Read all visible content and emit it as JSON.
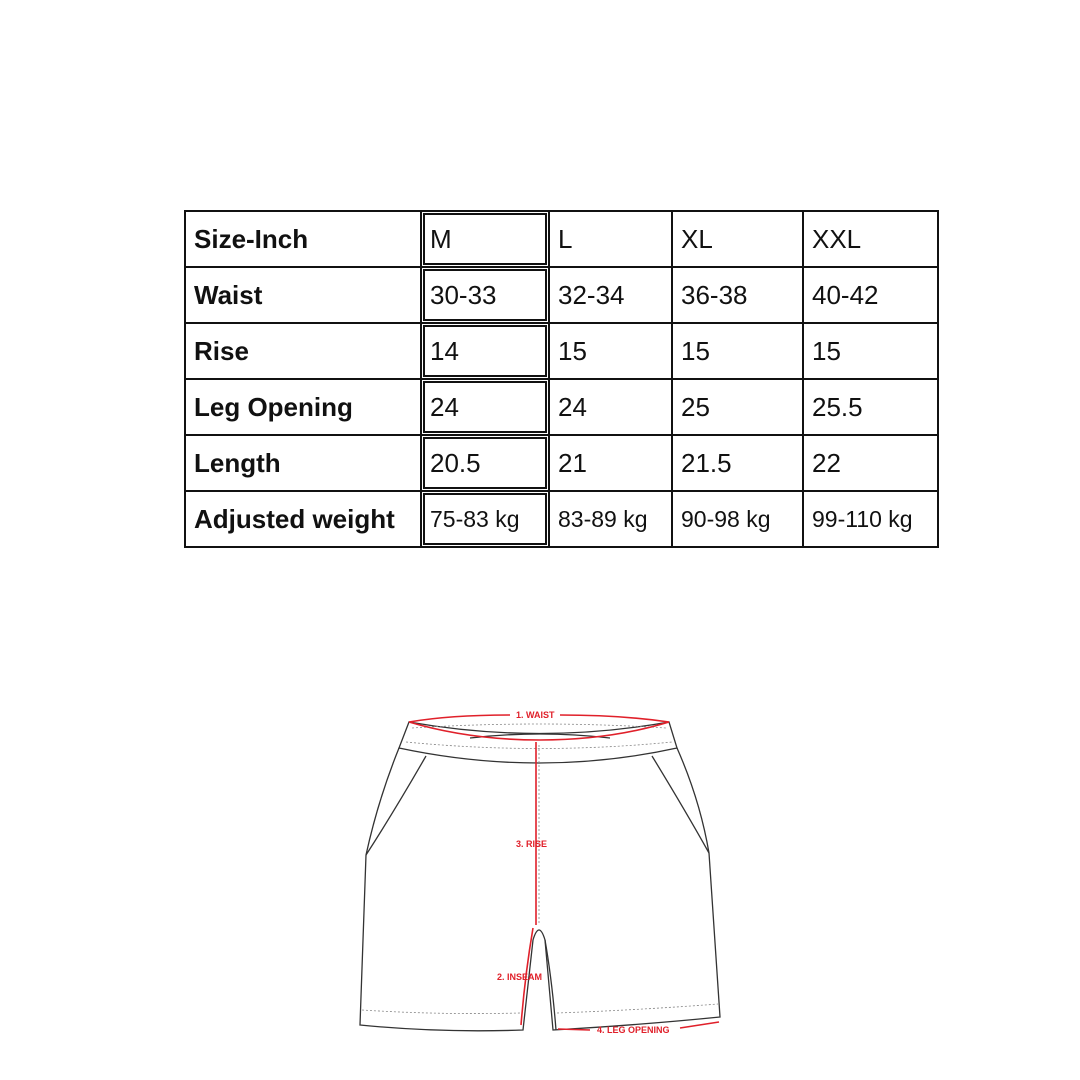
{
  "size_chart": {
    "header": [
      "Size-Inch",
      "M",
      "L",
      "XL",
      "XXL"
    ],
    "rows": [
      [
        "Waist",
        "30-33",
        "32-34",
        "36-38",
        "40-42"
      ],
      [
        "Rise",
        "14",
        "15",
        "15",
        "15"
      ],
      [
        "Leg Opening",
        "24",
        "24",
        "25",
        "25.5"
      ],
      [
        "Length",
        "20.5",
        "21",
        "21.5",
        "22"
      ],
      [
        "Adjusted weight",
        "75-83 kg",
        "83-89 kg",
        "90-98 kg",
        "99-110 kg"
      ]
    ]
  },
  "diagram": {
    "labels": {
      "waist": "1. WAIST",
      "inseam": "2. INSEAM",
      "rise": "3. RISE",
      "leg_opening": "4. LEG OPENING"
    },
    "accent_color": "#e0202a"
  }
}
